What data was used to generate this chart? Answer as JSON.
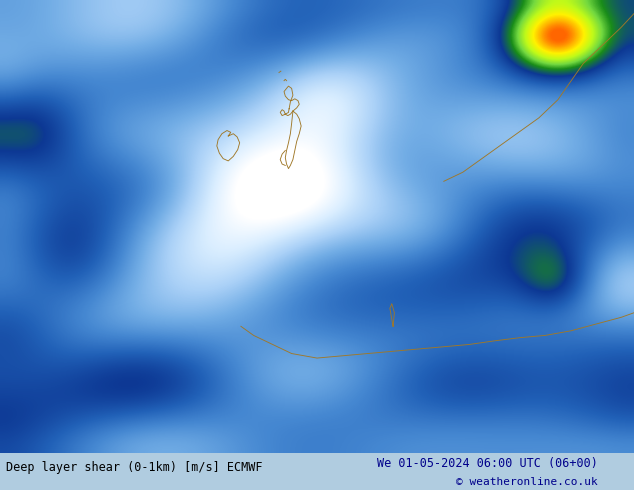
{
  "title_left": "Deep layer shear (0-1km) [m/s] ECMWF",
  "title_right": "We 01-05-2024 06:00 UTC (06+00)",
  "copyright": "© weatheronline.co.uk",
  "figsize": [
    6.34,
    4.9
  ],
  "dpi": 100,
  "text_color_left": "#000000",
  "text_color_right": "#00008B",
  "bottom_bg": "#b8d8f0",
  "fig_bg": "#b0cce0"
}
